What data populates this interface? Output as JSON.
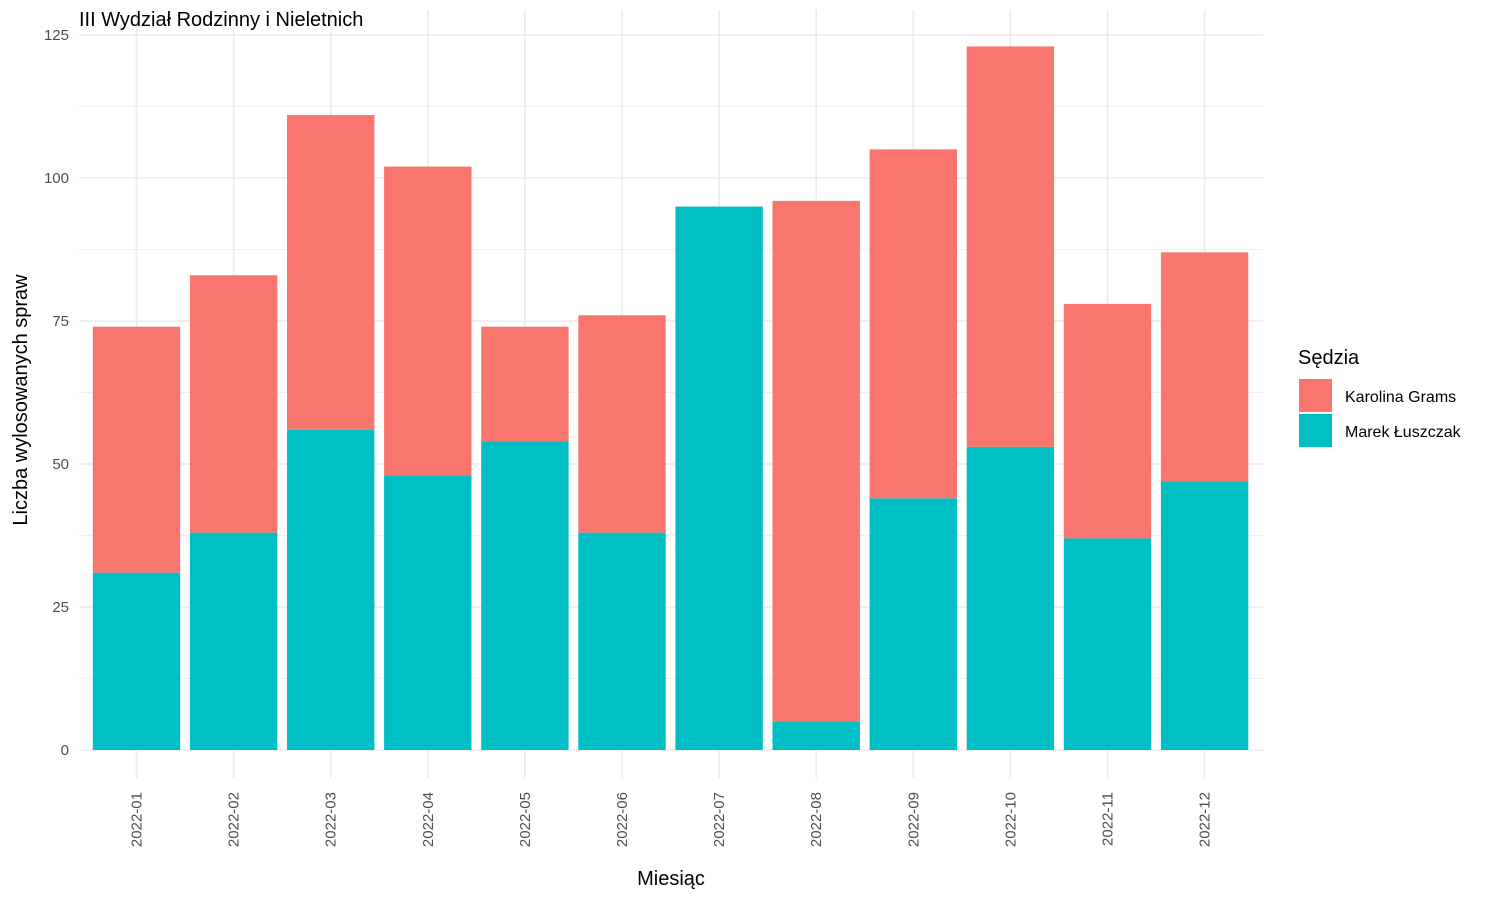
{
  "chart_data": {
    "type": "bar",
    "stacked": true,
    "title": "III Wydział Rodzinny i Nieletnich",
    "xlabel": "Miesiąc",
    "ylabel": "Liczba wylosowanych spraw",
    "ylim": [
      0,
      125
    ],
    "yticks": [
      0,
      25,
      50,
      75,
      100,
      125
    ],
    "grid": true,
    "legend_title": "Sędzia",
    "legend_position": "right",
    "categories": [
      "2022-01",
      "2022-02",
      "2022-03",
      "2022-04",
      "2022-05",
      "2022-06",
      "2022-07",
      "2022-08",
      "2022-09",
      "2022-10",
      "2022-11",
      "2022-12"
    ],
    "series": [
      {
        "name": "Marek Łuszczak",
        "color": "#00BFC4",
        "values": [
          31,
          38,
          56,
          48,
          54,
          38,
          95,
          5,
          44,
          53,
          37,
          47
        ]
      },
      {
        "name": "Karolina Grams",
        "color": "#F8766D",
        "values": [
          43,
          45,
          55,
          54,
          20,
          38,
          0,
          91,
          61,
          70,
          41,
          40
        ]
      }
    ],
    "legend_order": [
      "Karolina Grams",
      "Marek Łuszczak"
    ]
  }
}
